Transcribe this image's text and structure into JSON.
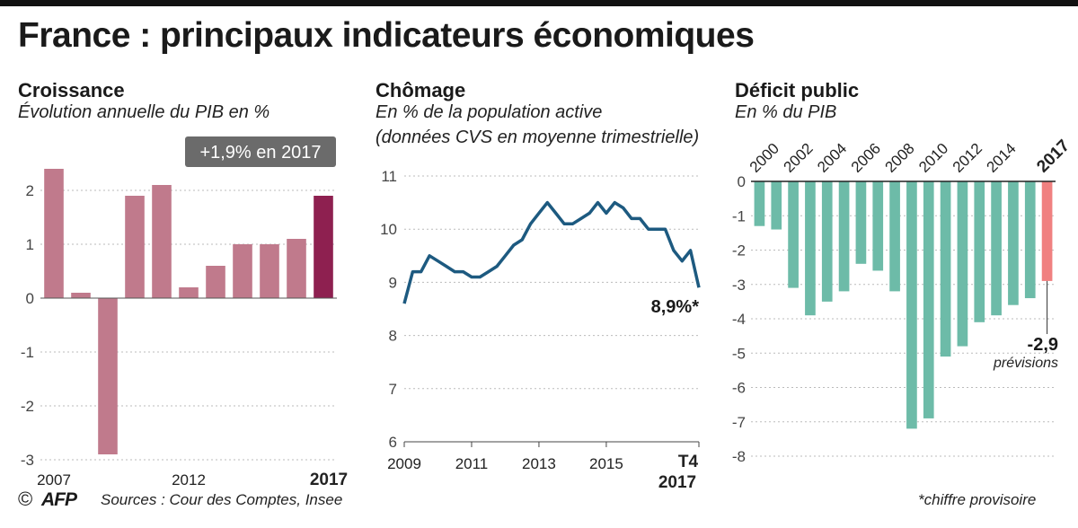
{
  "title": "France : principaux indicateurs économiques",
  "colors": {
    "growth_bar": "#c07a8c",
    "growth_highlight": "#8e2050",
    "unemployment_line": "#1d5a80",
    "deficit_bar": "#6dbba8",
    "deficit_highlight": "#f08080",
    "badge_bg": "#6b6b6b",
    "grid": "#bbbbbb"
  },
  "chart_data": [
    {
      "id": "croissance",
      "type": "bar",
      "title": "Croissance",
      "subtitle": "Évolution annuelle du PIB en %",
      "categories": [
        "2007",
        "2008",
        "2009",
        "2010",
        "2011",
        "2012",
        "2013",
        "2014",
        "2015",
        "2016",
        "2017"
      ],
      "values": [
        2.4,
        0.1,
        -2.9,
        1.9,
        2.1,
        0.2,
        0.6,
        1.0,
        1.0,
        1.1,
        1.9
      ],
      "highlight_index": 10,
      "ylim": [
        -3,
        2.4
      ],
      "yticks": [
        2,
        1,
        0,
        -1,
        -2,
        -3
      ],
      "ytick_labels": [
        "2",
        "1",
        "0",
        "-1",
        "-2",
        "-3"
      ],
      "xtick_labels": [
        {
          "index": 0,
          "label": "2007",
          "bold": false
        },
        {
          "index": 5,
          "label": "2012",
          "bold": false
        },
        {
          "index": 10,
          "label": "2017",
          "bold": true
        }
      ],
      "badge": "+1,9% en 2017"
    },
    {
      "id": "chomage",
      "type": "line",
      "title": "Chômage",
      "subtitle": "En % de la population active",
      "subtitle2": "(données CVS en moyenne trimestrielle)",
      "x": [
        2009.0,
        2009.25,
        2009.5,
        2009.75,
        2010.0,
        2010.25,
        2010.5,
        2010.75,
        2011.0,
        2011.25,
        2011.5,
        2011.75,
        2012.0,
        2012.25,
        2012.5,
        2012.75,
        2013.0,
        2013.25,
        2013.5,
        2013.75,
        2014.0,
        2014.25,
        2014.5,
        2014.75,
        2015.0,
        2015.25,
        2015.5,
        2015.75,
        2016.0,
        2016.25,
        2016.5,
        2016.75,
        2017.0,
        2017.25,
        2017.5,
        2017.75
      ],
      "values": [
        8.6,
        9.2,
        9.2,
        9.5,
        9.4,
        9.3,
        9.2,
        9.2,
        9.1,
        9.1,
        9.2,
        9.3,
        9.5,
        9.7,
        9.8,
        10.1,
        10.3,
        10.5,
        10.3,
        10.1,
        10.1,
        10.2,
        10.3,
        10.5,
        10.3,
        10.5,
        10.4,
        10.2,
        10.2,
        10.0,
        10.0,
        10.0,
        9.6,
        9.4,
        9.6,
        8.9
      ],
      "ylim": [
        6,
        11
      ],
      "yticks": [
        11,
        10,
        9,
        8,
        7,
        6
      ],
      "ytick_labels": [
        "11",
        "10",
        "9",
        "8",
        "7",
        "6"
      ],
      "xtick_labels": [
        "2009",
        "2011",
        "2013",
        "2015"
      ],
      "xtick_values": [
        2009,
        2011,
        2013,
        2015
      ],
      "last_tick_line1": "T4",
      "last_tick_line2": "2017",
      "end_label": "8,9%*"
    },
    {
      "id": "deficit",
      "type": "bar",
      "title": "Déficit public",
      "subtitle": "En % du PIB",
      "categories": [
        "2000",
        "2001",
        "2002",
        "2003",
        "2004",
        "2005",
        "2006",
        "2007",
        "2008",
        "2009",
        "2010",
        "2011",
        "2012",
        "2013",
        "2014",
        "2015",
        "2016",
        "2017"
      ],
      "values": [
        -1.3,
        -1.4,
        -3.1,
        -3.9,
        -3.5,
        -3.2,
        -2.4,
        -2.6,
        -3.2,
        -7.2,
        -6.9,
        -5.1,
        -4.8,
        -4.1,
        -3.9,
        -3.6,
        -3.4,
        -2.9
      ],
      "highlight_index": 17,
      "ylim": [
        -8,
        0
      ],
      "yticks": [
        0,
        -1,
        -2,
        -3,
        -4,
        -5,
        -6,
        -7,
        -8
      ],
      "ytick_labels": [
        "0",
        "-1",
        "-2",
        "-3",
        "-4",
        "-5",
        "-6",
        "-7",
        "-8"
      ],
      "xtick_labels": [
        {
          "index": 0,
          "label": "2000",
          "bold": false
        },
        {
          "index": 2,
          "label": "2002",
          "bold": false
        },
        {
          "index": 4,
          "label": "2004",
          "bold": false
        },
        {
          "index": 6,
          "label": "2006",
          "bold": false
        },
        {
          "index": 8,
          "label": "2008",
          "bold": false
        },
        {
          "index": 10,
          "label": "2010",
          "bold": false
        },
        {
          "index": 12,
          "label": "2012",
          "bold": false
        },
        {
          "index": 14,
          "label": "2014",
          "bold": false
        },
        {
          "index": 17,
          "label": "2017",
          "bold": true
        }
      ],
      "annotation_value": "-2,9",
      "annotation_note": "prévisions"
    }
  ],
  "footer": {
    "copyright": "©",
    "logo": "AFP",
    "sources": "Sources : Cour des Comptes, Insee",
    "note": "*chiffre provisoire"
  }
}
